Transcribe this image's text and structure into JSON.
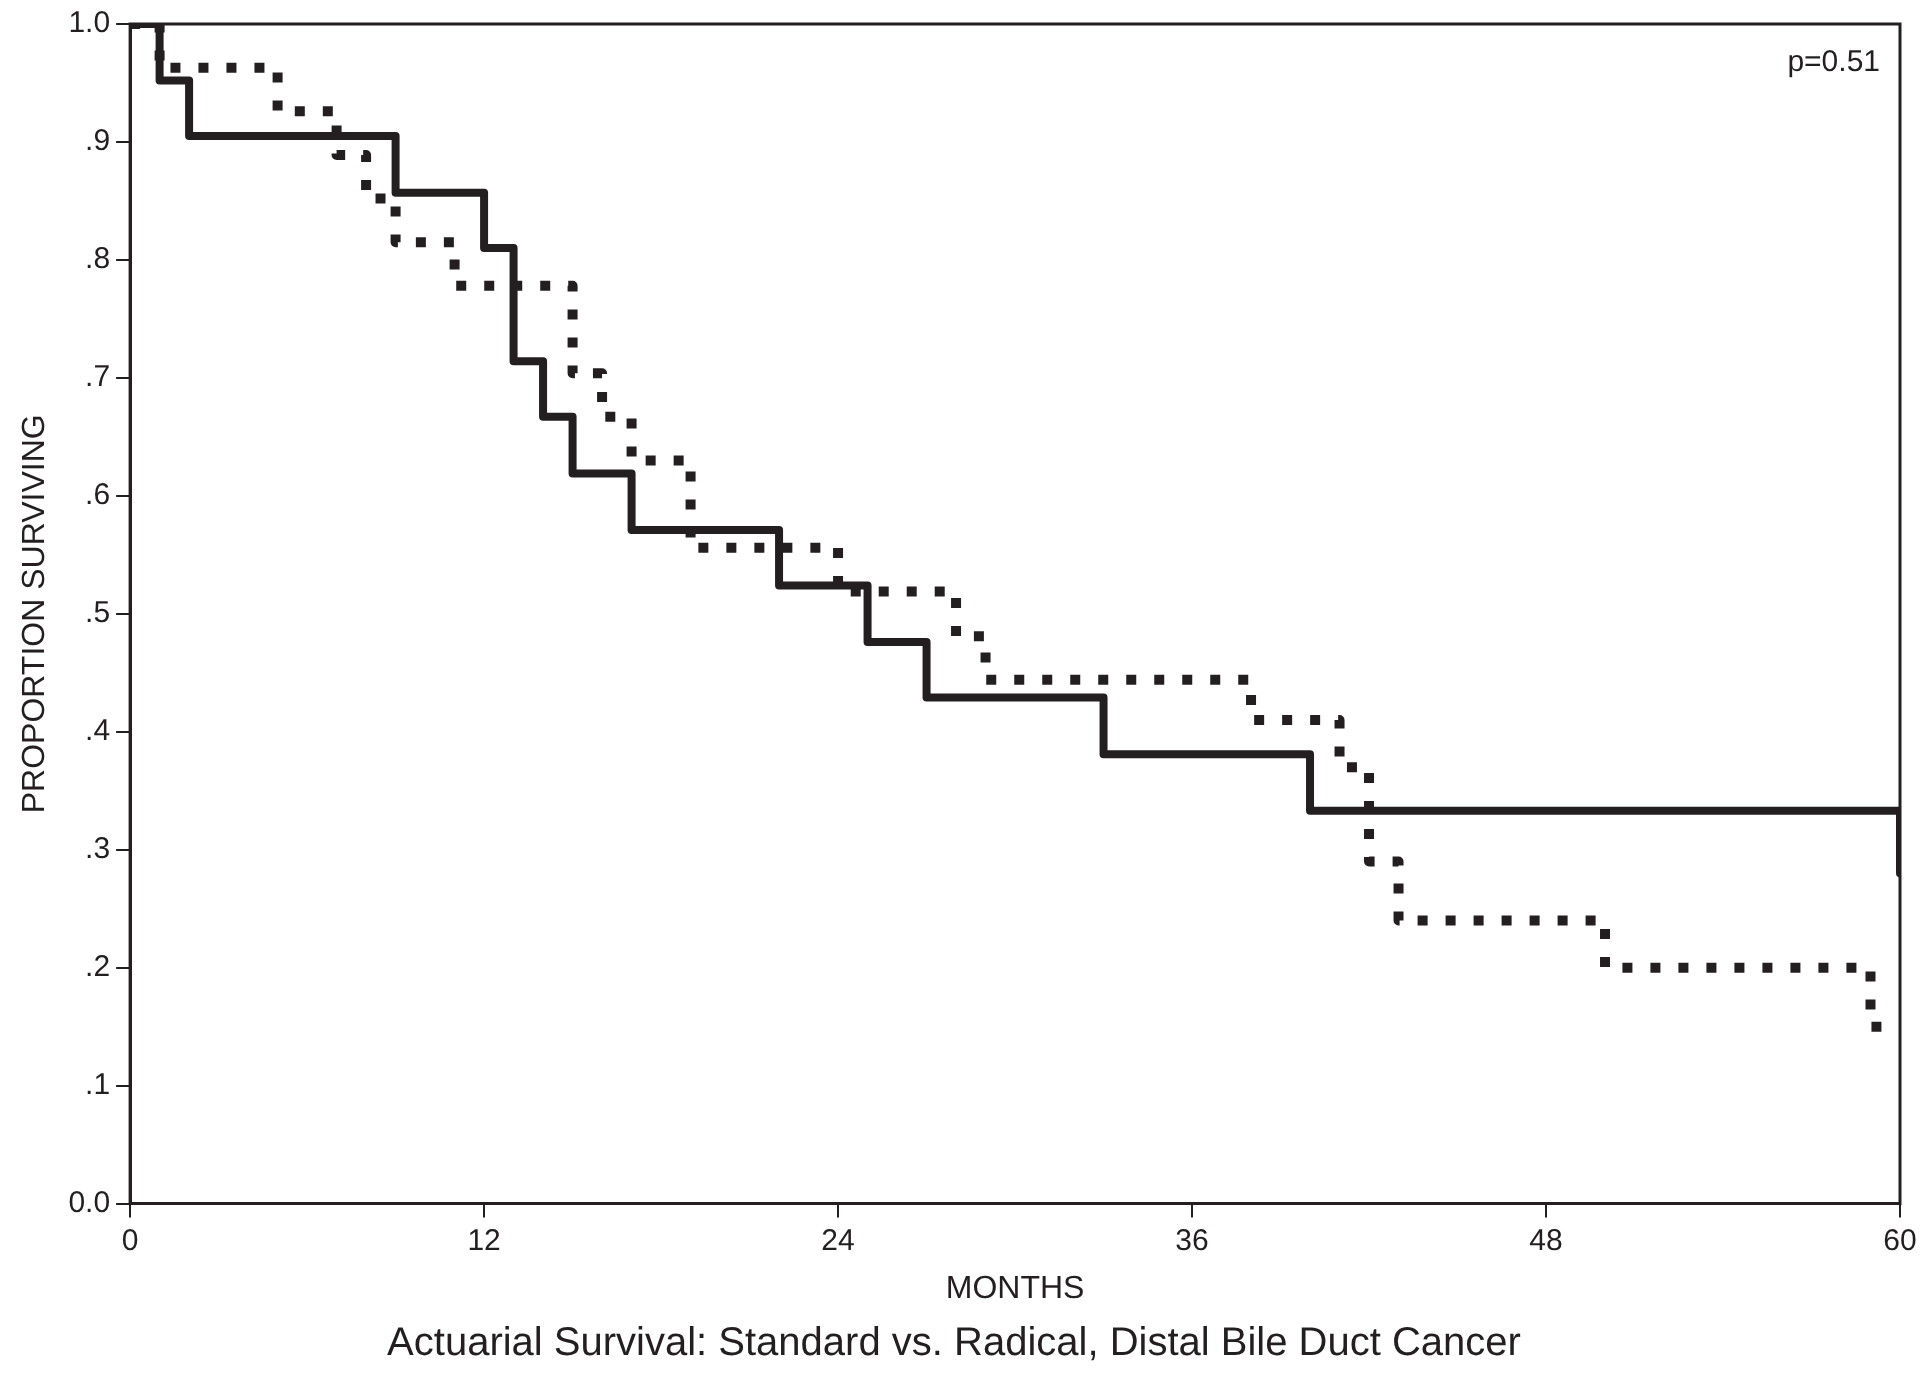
{
  "chart_data": {
    "type": "step",
    "title": "Actuarial Survival: Standard vs. Radical, Distal Bile Duct Cancer",
    "xlabel": "MONTHS",
    "ylabel": "PROPORTION SURVIVING",
    "annotations": [
      "p=0.51"
    ],
    "xlim": [
      0,
      60
    ],
    "xticks": [
      0,
      12,
      24,
      36,
      48,
      60
    ],
    "ylim": [
      0,
      1
    ],
    "yticks": [
      {
        "value": 0,
        "label": "0.0"
      },
      {
        "value": 0.1,
        "label": ".1"
      },
      {
        "value": 0.2,
        "label": ".2"
      },
      {
        "value": 0.3,
        "label": ".3"
      },
      {
        "value": 0.4,
        "label": ".4"
      },
      {
        "value": 0.5,
        "label": ".5"
      },
      {
        "value": 0.6,
        "label": ".6"
      },
      {
        "value": 0.7,
        "label": ".7"
      },
      {
        "value": 0.8,
        "label": ".8"
      },
      {
        "value": 0.9,
        "label": ".9"
      },
      {
        "value": 1,
        "label": "1.0"
      }
    ],
    "grid": false,
    "legend": false,
    "marker": "none",
    "series": [
      {
        "color": "#231f20",
        "line_style": "solid",
        "x": [
          0,
          1,
          2,
          9,
          12,
          13,
          14,
          15,
          17,
          22,
          25,
          27,
          33,
          40,
          60,
          60
        ],
        "values": [
          1,
          0.952,
          0.905,
          0.857,
          0.81,
          0.714,
          0.667,
          0.619,
          0.571,
          0.524,
          0.476,
          0.429,
          0.381,
          0.333,
          0.333,
          0.28
        ]
      },
      {
        "color": "#231f20",
        "line_style": "dotted",
        "x": [
          0,
          1,
          5,
          7,
          8,
          9,
          11,
          15,
          16,
          17,
          19,
          24,
          28,
          29,
          38,
          41,
          42,
          43,
          50,
          59,
          59.5
        ],
        "values": [
          1,
          0.963,
          0.926,
          0.889,
          0.852,
          0.815,
          0.778,
          0.704,
          0.667,
          0.63,
          0.556,
          0.519,
          0.481,
          0.444,
          0.41,
          0.37,
          0.29,
          0.24,
          0.2,
          0.15,
          0.15
        ]
      }
    ]
  }
}
